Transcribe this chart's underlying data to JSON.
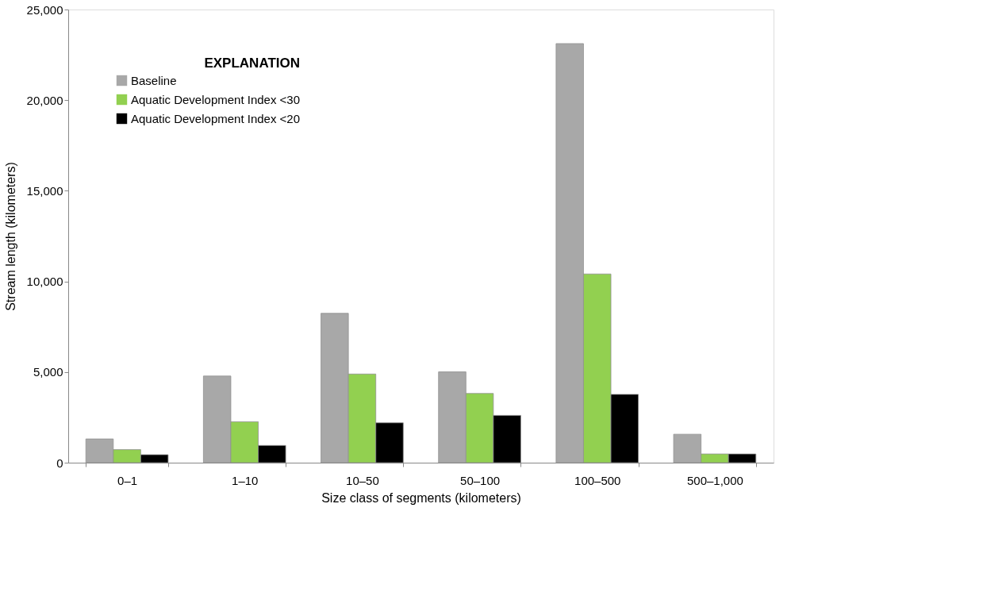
{
  "chart_data": {
    "type": "bar",
    "xlabel": "Size class of segments (kilometers)",
    "ylabel": "Stream length (kilometers)",
    "legend_title": "EXPLANATION",
    "categories": [
      "0–1",
      "1–10",
      "10–50",
      "50–100",
      "100–500",
      "500–1,000"
    ],
    "series": [
      {
        "name": "Baseline",
        "color": "#a8a8a8",
        "values": [
          1310,
          4780,
          8240,
          5010,
          23120,
          1570
        ]
      },
      {
        "name": "Aquatic Development Index <30",
        "color": "#92d050",
        "values": [
          720,
          2260,
          4890,
          3820,
          10410,
          480
        ]
      },
      {
        "name": "Aquatic Development Index <20",
        "color": "#000000",
        "values": [
          440,
          950,
          2200,
          2610,
          3770,
          480
        ]
      }
    ],
    "ylim": [
      0,
      25000
    ],
    "yticks": [
      0,
      {
        "value": 5000,
        "label": "5,000"
      },
      {
        "value": 10000,
        "label": "10,000"
      },
      {
        "value": 15000,
        "label": "15,000"
      },
      {
        "value": 20000,
        "label": "20,000"
      },
      {
        "value": 25000,
        "label": "25,000"
      }
    ],
    "grid": false,
    "legend": "top left"
  }
}
